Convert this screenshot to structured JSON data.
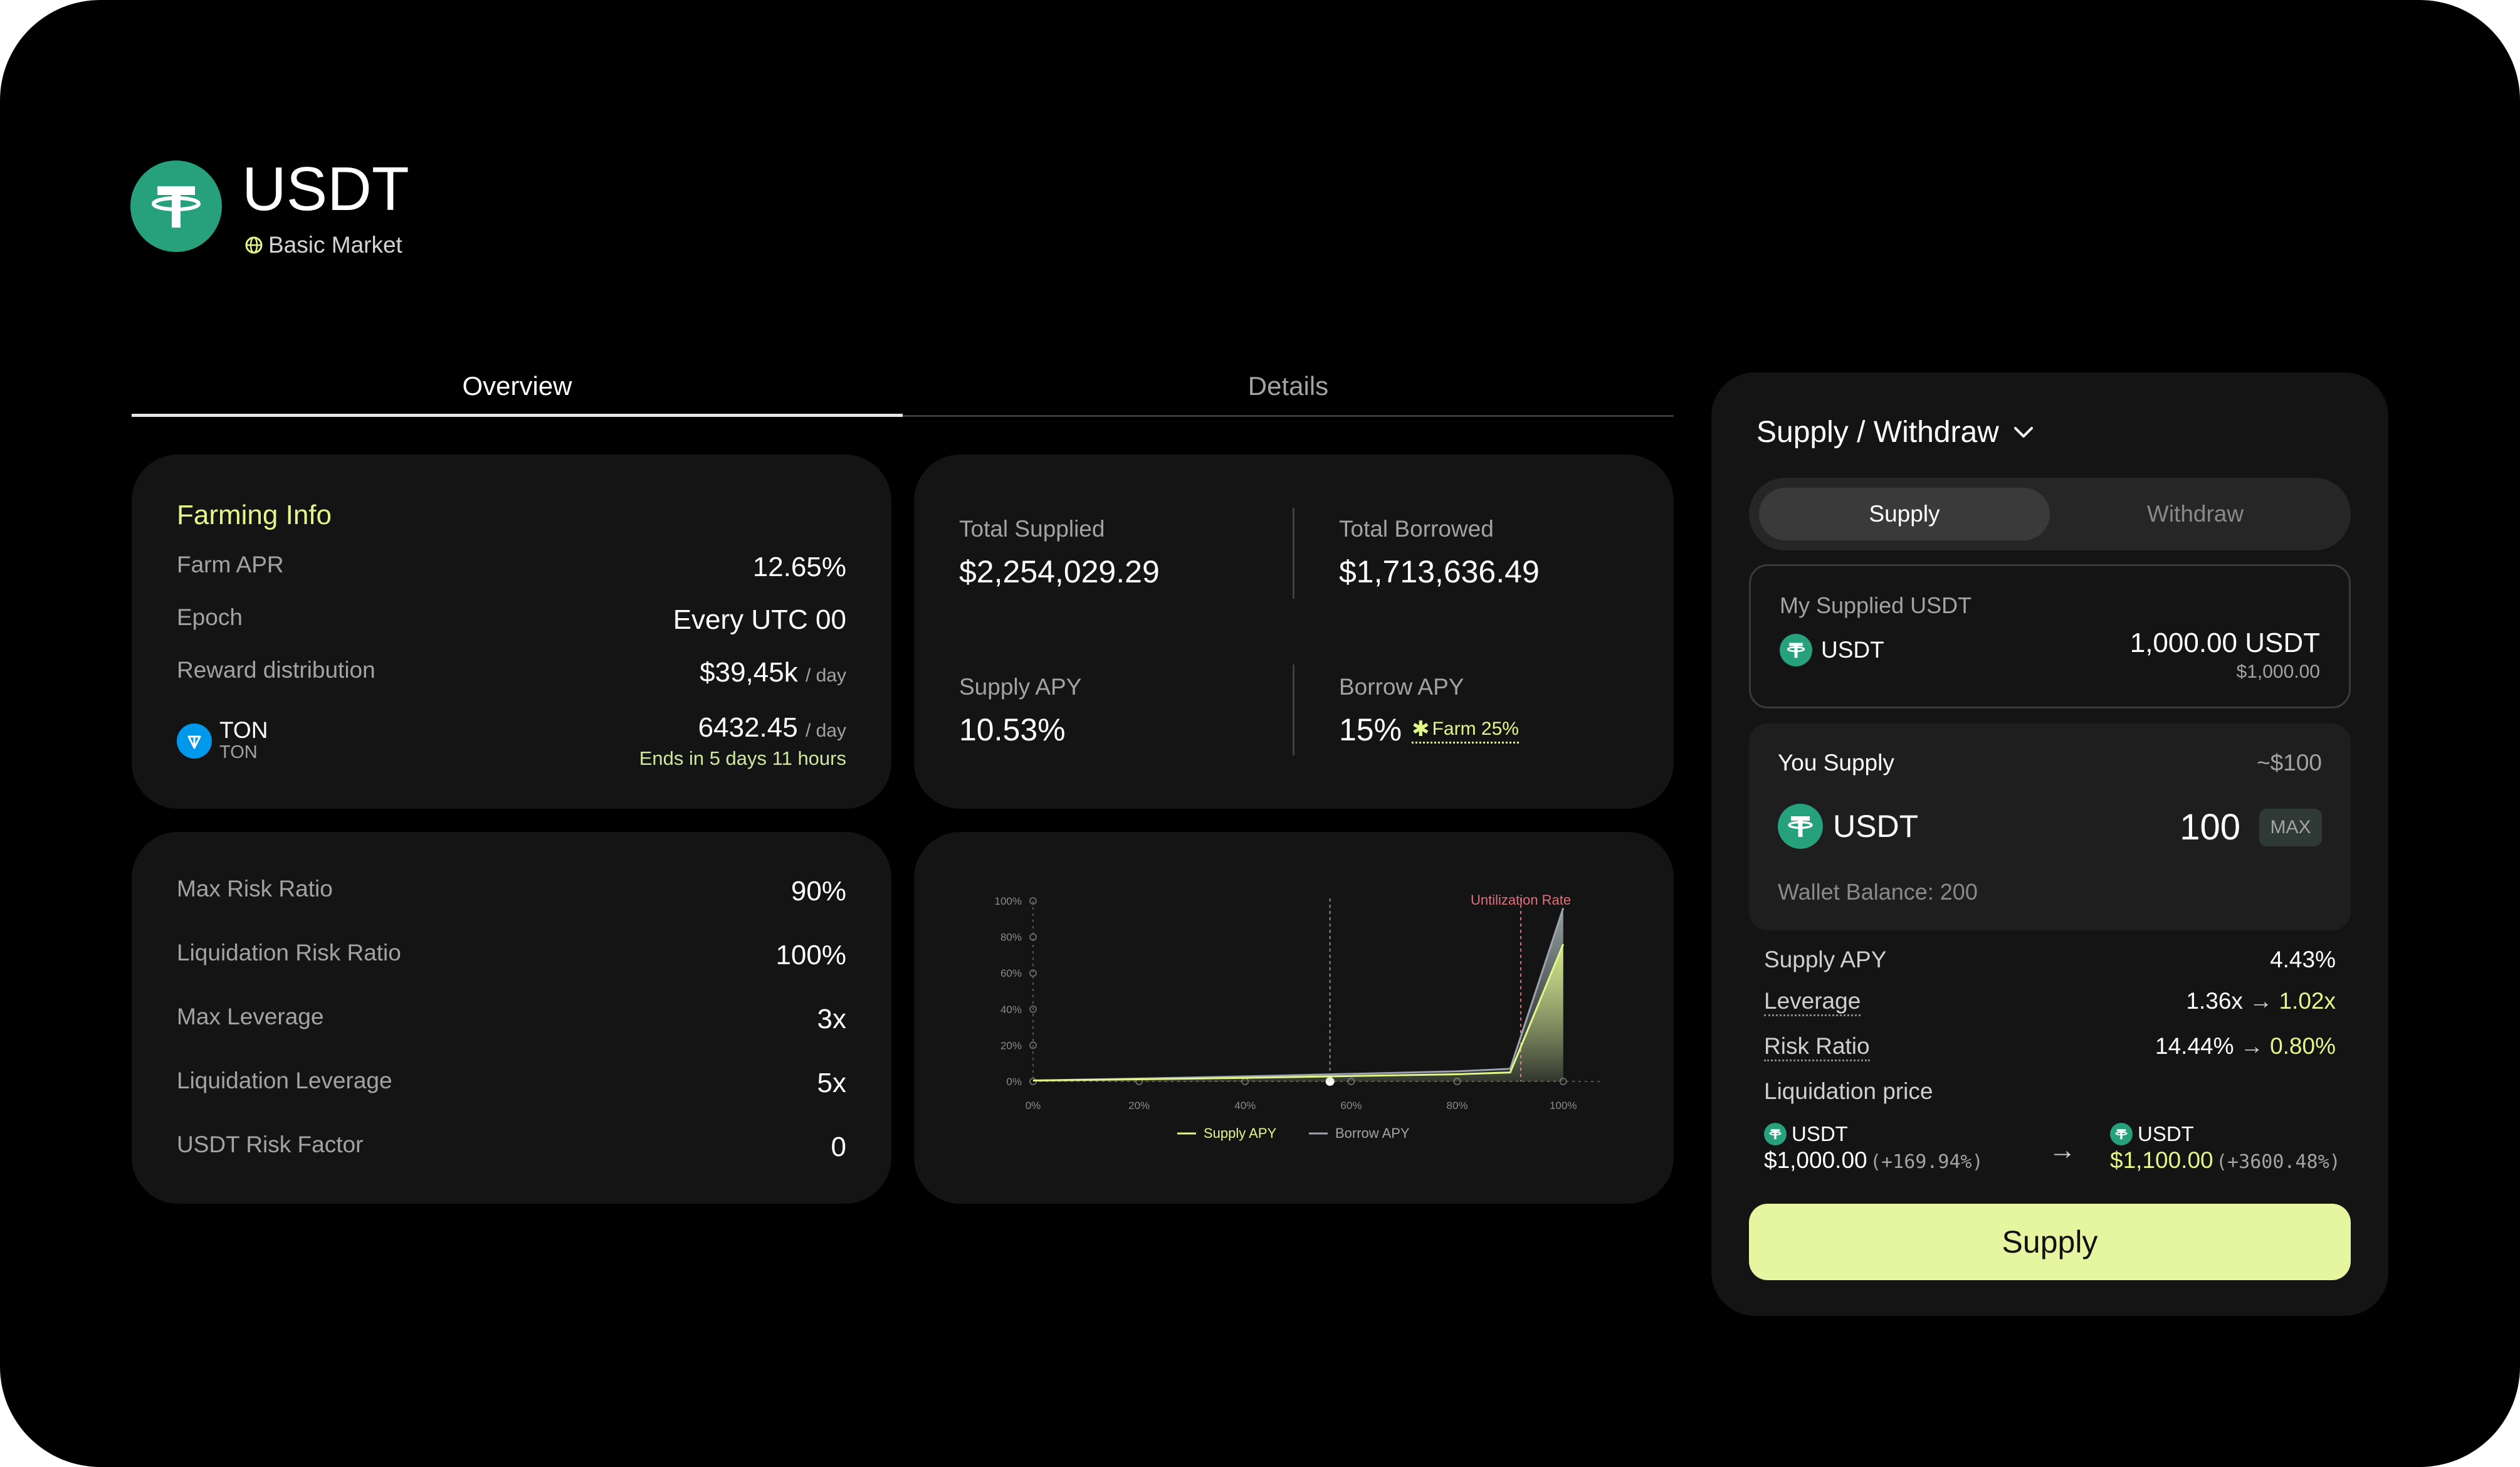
{
  "asset": {
    "title": "USDT",
    "market": "Basic Market"
  },
  "tabs": [
    {
      "label": "Overview"
    },
    {
      "label": "Details"
    }
  ],
  "farming": {
    "title": "Farming Info",
    "rows": [
      {
        "label": "Farm APR",
        "value": "12.65%"
      },
      {
        "label": "Epoch",
        "value": "Every UTC 00"
      },
      {
        "label": "Reward distribution",
        "value": "$39,45k",
        "unit": "/ day"
      }
    ],
    "reward": {
      "token": "TON",
      "sub": "TON",
      "value": "6432.45",
      "unit": "/ day",
      "ends": "Ends in 5 days 11 hours"
    }
  },
  "stats": {
    "total_supplied_label": "Total Supplied",
    "total_supplied": "$2,254,029.29",
    "total_borrowed_label": "Total Borrowed",
    "total_borrowed": "$1,713,636.49",
    "supply_apy_label": "Supply APY",
    "supply_apy": "10.53%",
    "borrow_apy_label": "Borrow APY",
    "borrow_apy": "15%",
    "farm_badge": "Farm 25%"
  },
  "risk": {
    "rows": [
      {
        "label": "Max Risk Ratio",
        "value": "90%"
      },
      {
        "label": "Liquidation Risk Ratio",
        "value": "100%"
      },
      {
        "label": "Max Leverage",
        "value": "3x"
      },
      {
        "label": "Liquidation Leverage",
        "value": "5x"
      },
      {
        "label": "USDT Risk Factor",
        "value": "0"
      }
    ]
  },
  "chart_data": {
    "type": "area",
    "title": "",
    "x": [
      0,
      20,
      40,
      60,
      80,
      90,
      100
    ],
    "xlim": [
      0,
      105
    ],
    "ylim": [
      0,
      100
    ],
    "x_tick_labels": [
      "0%",
      "20%",
      "40%",
      "60%",
      "80%",
      "100%"
    ],
    "x_ticks": [
      0,
      20,
      40,
      60,
      80,
      100
    ],
    "y_tick_labels": [
      "0%",
      "20%",
      "40%",
      "60%",
      "80%",
      "100%"
    ],
    "y_ticks": [
      0,
      20,
      40,
      60,
      80,
      100
    ],
    "series": [
      {
        "name": "Supply APY",
        "color": "#e2f78a",
        "values": [
          0.5,
          1.2,
          2,
          3,
          4,
          5,
          76
        ]
      },
      {
        "name": "Borrow APY",
        "color": "#9ca3af",
        "values": [
          0.5,
          1.6,
          2.8,
          4.2,
          5.6,
          7,
          96
        ]
      }
    ],
    "markers": [
      {
        "x": 56,
        "label": "",
        "color": "#8a8a8a"
      },
      {
        "x": 92,
        "label": "Untilization Rate",
        "color": "#e0707a"
      }
    ]
  },
  "panel": {
    "title": "Supply / Withdraw",
    "seg_supply": "Supply",
    "seg_withdraw": "Withdraw",
    "my_supplied_label": "My Supplied USDT",
    "my_token": "USDT",
    "my_amount": "1,000.00 USDT",
    "my_amount_usd": "$1,000.00",
    "you_supply_label": "You Supply",
    "you_supply_usd": "~$100",
    "input_token": "USDT",
    "input_value": "100",
    "max_label": "MAX",
    "wallet_balance": "Wallet Balance: 200",
    "apy_label": "Supply APY",
    "apy_value": "4.43%",
    "leverage_label": "Leverage",
    "leverage_from": "1.36x",
    "leverage_to": "1.02x",
    "risk_label": "Risk Ratio",
    "risk_from": "14.44%",
    "risk_to": "0.80%",
    "liq_label": "Liquidation price",
    "liq_from_token": "USDT",
    "liq_from_value": "$1,000.00",
    "liq_from_pct": "(+169.94%)",
    "liq_to_token": "USDT",
    "liq_to_value": "$1,100.00",
    "liq_to_pct": "(+3600.48%)",
    "supply_button": "Supply"
  },
  "colors": {
    "accent": "#e2f78a",
    "tether": "#26a17b",
    "ton": "#0098ea",
    "background": "#000000",
    "card": "#141414"
  }
}
